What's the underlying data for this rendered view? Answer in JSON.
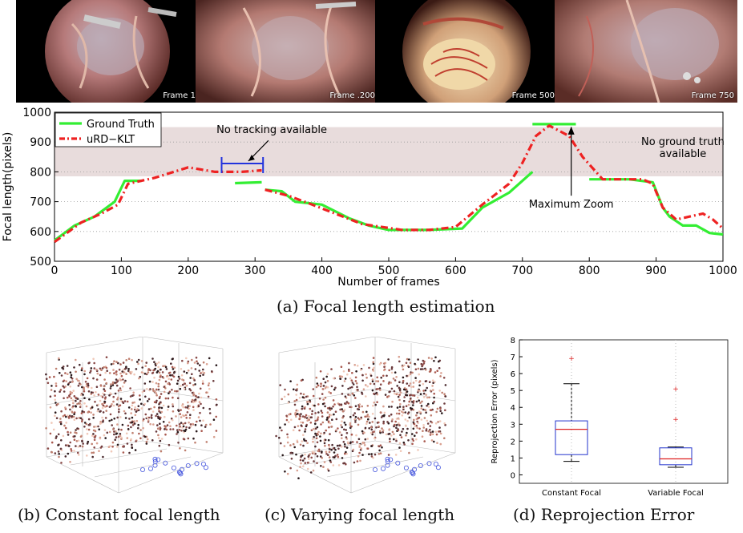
{
  "frames": [
    {
      "label": "Frame 1",
      "variant": "a"
    },
    {
      "label": "Frame .200",
      "variant": "b"
    },
    {
      "label": "Frame 500",
      "variant": "c"
    },
    {
      "label": "Frame 750",
      "variant": "d"
    }
  ],
  "chart_data": [
    {
      "type": "line",
      "ylabel": "Focal length(pixels)",
      "xlabel": "Number of frames",
      "xlim": [
        0,
        1000
      ],
      "ylim": [
        500,
        1000
      ],
      "xticks": [
        0,
        100,
        200,
        300,
        400,
        500,
        600,
        700,
        800,
        900,
        1000
      ],
      "yticks": [
        500,
        600,
        700,
        800,
        900,
        1000
      ],
      "legend_position": "top-left",
      "series": [
        {
          "name": "Ground Truth",
          "color": "#33ee33",
          "style": "solid",
          "segments": [
            [
              [
                0,
                570
              ],
              [
                30,
                620
              ],
              [
                60,
                650
              ],
              [
                90,
                700
              ],
              [
                105,
                770
              ],
              [
                130,
                770
              ]
            ],
            [
              [
                270,
                762
              ],
              [
                310,
                765
              ]
            ],
            [
              [
                315,
                740
              ],
              [
                340,
                735
              ],
              [
                360,
                700
              ],
              [
                400,
                690
              ],
              [
                440,
                645
              ],
              [
                470,
                620
              ],
              [
                500,
                605
              ],
              [
                560,
                605
              ],
              [
                610,
                610
              ],
              [
                640,
                680
              ],
              [
                680,
                730
              ],
              [
                715,
                800
              ]
            ],
            [
              [
                715,
                960
              ],
              [
                780,
                960
              ]
            ],
            [
              [
                800,
                775
              ],
              [
                860,
                775
              ],
              [
                895,
                765
              ],
              [
                910,
                680
              ],
              [
                920,
                650
              ],
              [
                940,
                620
              ],
              [
                960,
                620
              ],
              [
                980,
                595
              ],
              [
                1000,
                590
              ]
            ]
          ]
        },
        {
          "name": "uRD−KLT",
          "color": "#ee2222",
          "style": "dashdot",
          "segments": [
            [
              [
                0,
                565
              ],
              [
                40,
                630
              ],
              [
                70,
                660
              ],
              [
                95,
                690
              ],
              [
                110,
                760
              ],
              [
                150,
                780
              ],
              [
                200,
                815
              ],
              [
                240,
                800
              ],
              [
                280,
                800
              ],
              [
                310,
                805
              ]
            ],
            [
              [
                315,
                740
              ],
              [
                350,
                720
              ],
              [
                380,
                695
              ],
              [
                420,
                660
              ],
              [
                460,
                625
              ],
              [
                490,
                615
              ],
              [
                520,
                605
              ],
              [
                560,
                605
              ],
              [
                600,
                615
              ],
              [
                640,
                690
              ],
              [
                680,
                760
              ],
              [
                700,
                830
              ],
              [
                720,
                920
              ],
              [
                740,
                955
              ],
              [
                770,
                920
              ],
              [
                790,
                850
              ],
              [
                820,
                775
              ],
              [
                880,
                775
              ],
              [
                895,
                760
              ],
              [
                910,
                680
              ],
              [
                930,
                640
              ],
              [
                970,
                660
              ],
              [
                985,
                640
              ],
              [
                1000,
                610
              ]
            ]
          ]
        }
      ],
      "annotations": [
        "No tracking available",
        "No ground truth available",
        "Maximum Zoom"
      ]
    },
    {
      "type": "box",
      "ylabel": "Reprojection Error (pixels)",
      "categories": [
        "Constant Focal",
        "Variable Focal"
      ],
      "ylim": [
        -0.5,
        8
      ],
      "yticks": [
        0,
        1,
        2,
        3,
        4,
        5,
        6,
        7,
        8
      ],
      "boxes": [
        {
          "whisker_low": 0.8,
          "q1": 1.2,
          "median": 2.7,
          "q3": 3.2,
          "whisker_high": 5.4,
          "outliers": [
            6.9
          ]
        },
        {
          "whisker_low": 0.45,
          "q1": 0.6,
          "median": 0.95,
          "q3": 1.6,
          "whisker_high": 1.65,
          "outliers": [
            3.3,
            5.1
          ]
        }
      ]
    }
  ],
  "captions": {
    "a": "(a) Focal length estimation",
    "b": "(b) Constant focal length",
    "c": "(c) Varying focal length",
    "d": "(d) Reprojection Error"
  }
}
